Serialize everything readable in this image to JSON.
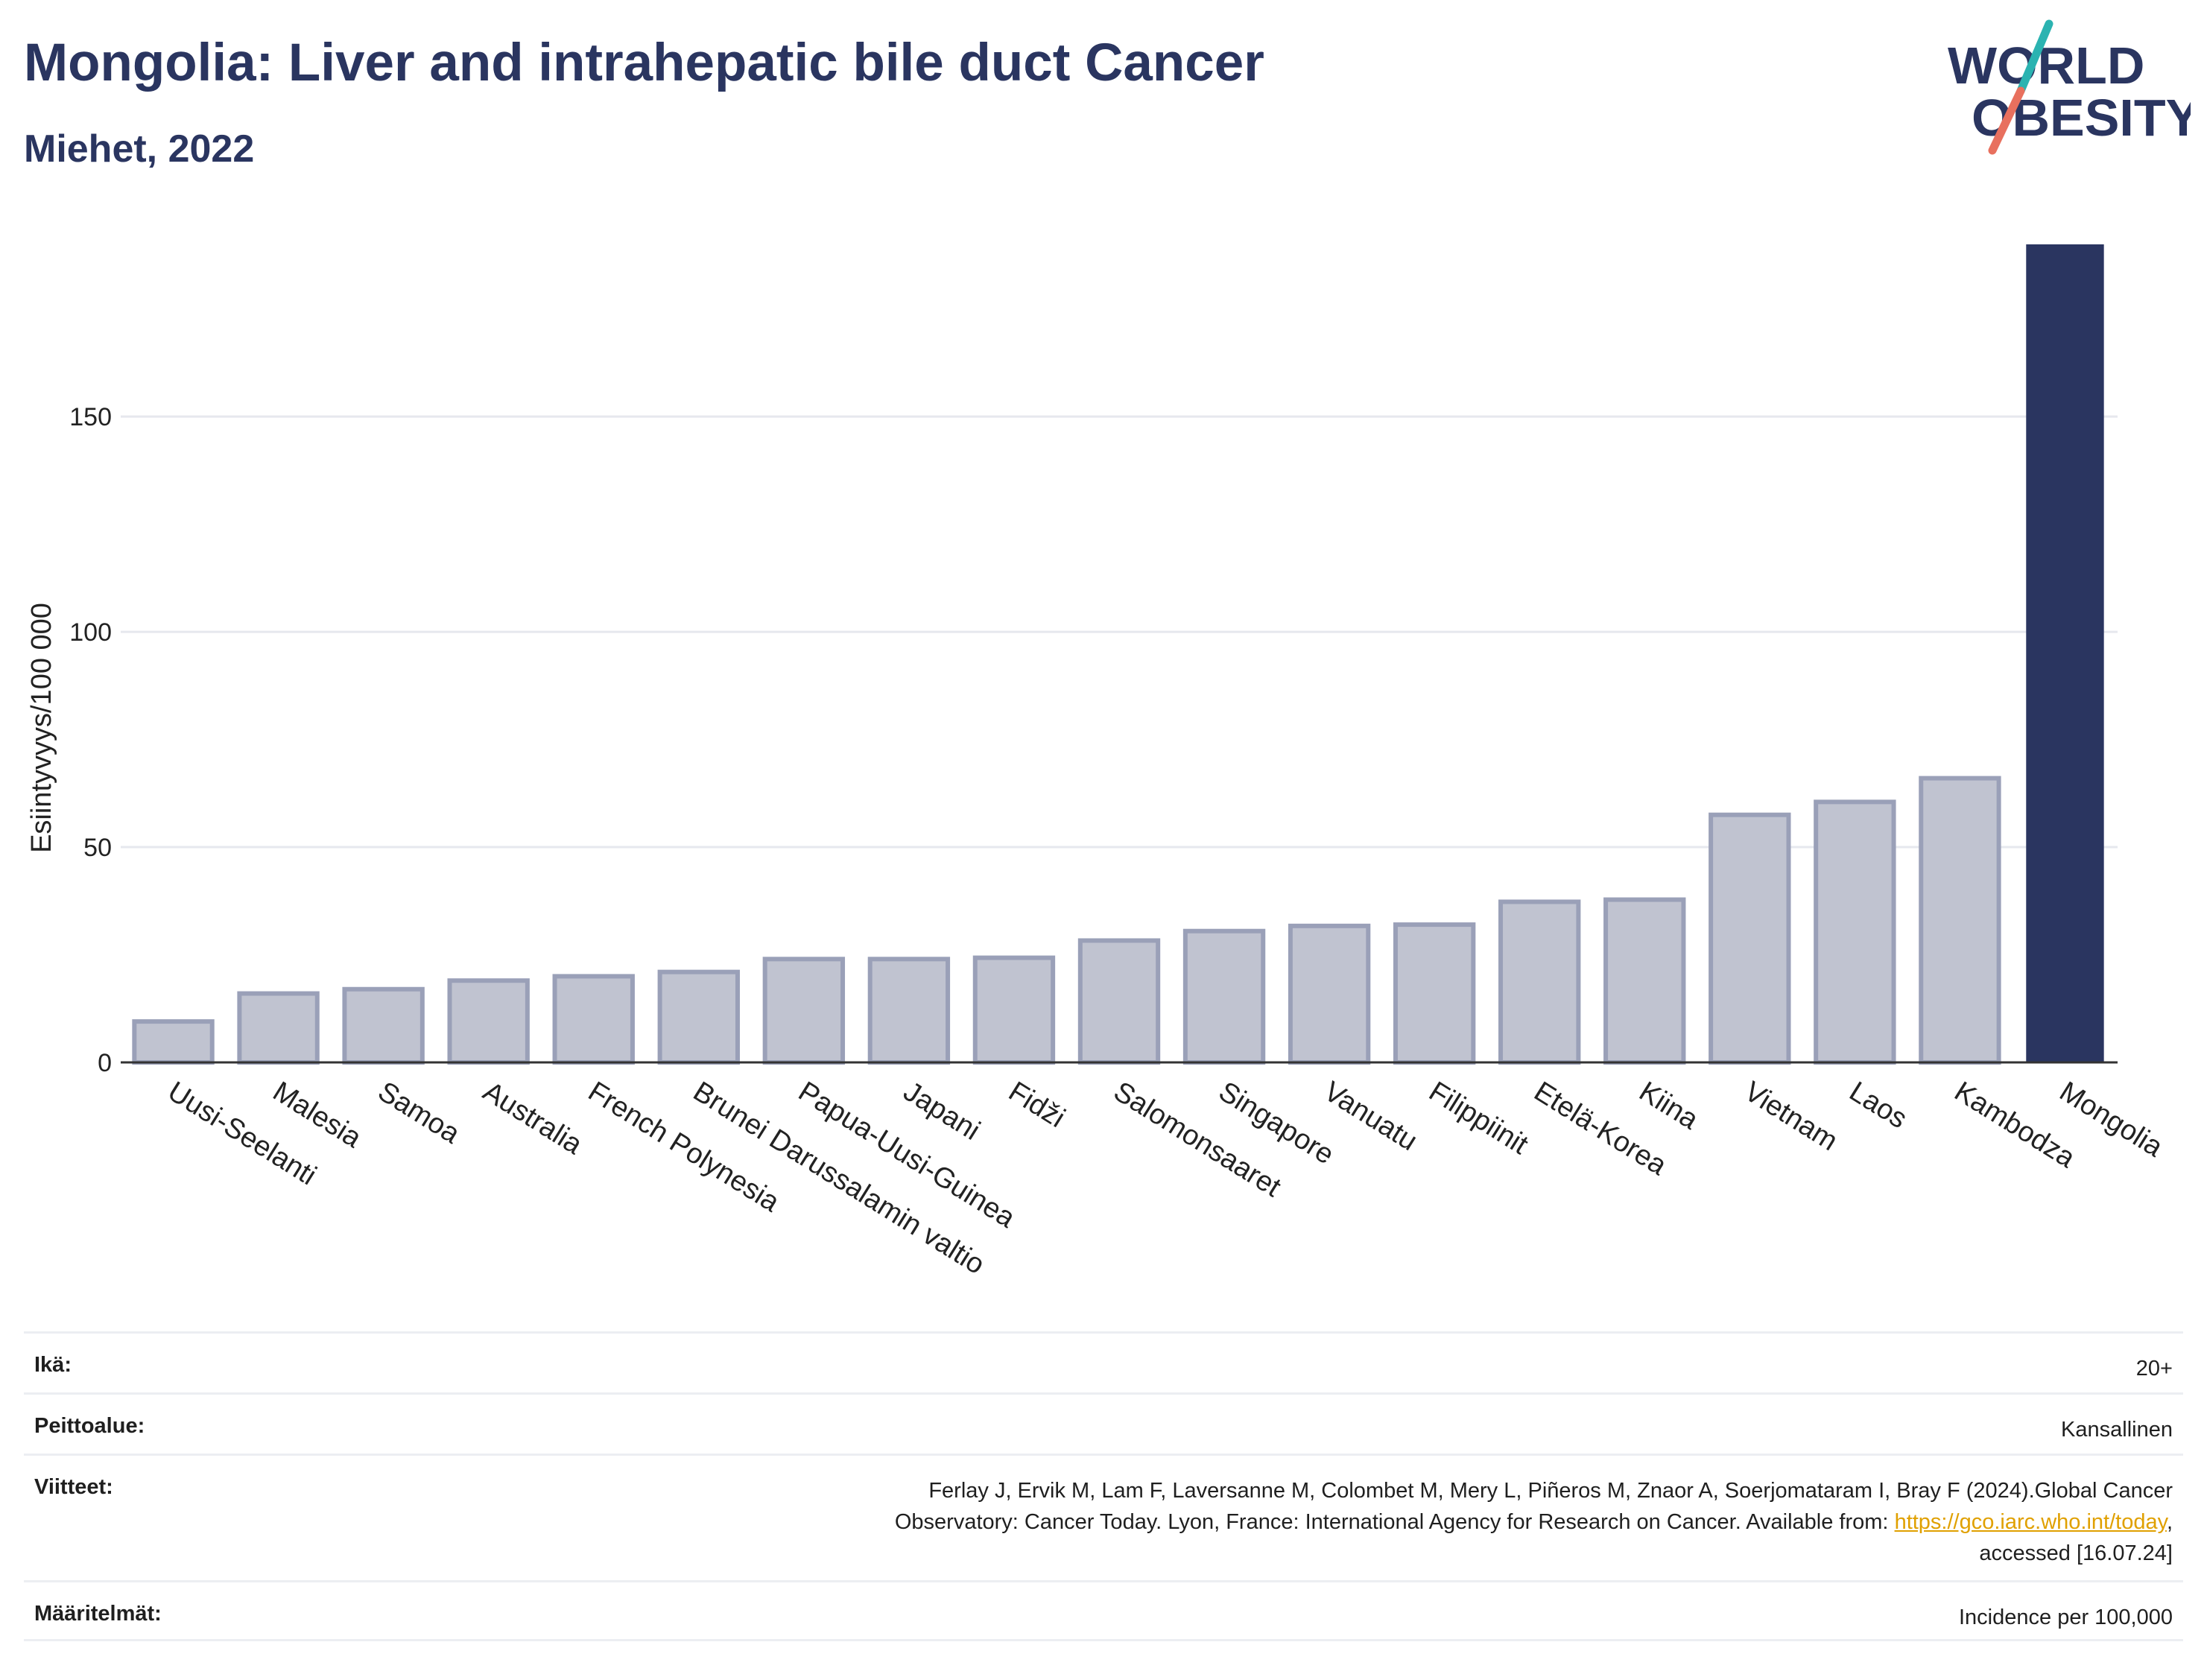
{
  "title": "Mongolia: Liver and intrahepatic bile duct Cancer",
  "subtitle": "Miehet, 2022",
  "logo": {
    "line1": "WORLD",
    "line2": "OBESITY",
    "colors": {
      "text": "#2a3560",
      "slash_top": "#2bb3b1",
      "slash_bottom": "#e8705e"
    }
  },
  "chart_data": {
    "type": "bar",
    "title": "Mongolia: Liver and intrahepatic bile duct Cancer",
    "subtitle": "Miehet, 2022",
    "xlabel": "",
    "ylabel": "Esiintyvyys/100 000",
    "ylim": [
      0,
      190
    ],
    "yticks": [
      0,
      50,
      100,
      150
    ],
    "grid": true,
    "categories": [
      "Uusi-Seelanti",
      "Malesia",
      "Samoa",
      "Australia",
      "French Polynesia",
      "Brunei Darussalamin valtio",
      "Papua-Uusi-Guinea",
      "Japani",
      "Fidži",
      "Salomonsaaret",
      "Singapore",
      "Vanuatu",
      "Filippiinit",
      "Etelä-Korea",
      "Kiina",
      "Vietnam",
      "Laos",
      "Kambodza",
      "Mongolia"
    ],
    "values": [
      9.5,
      16,
      17,
      19,
      20,
      21,
      24,
      24,
      24.3,
      28.3,
      30.5,
      31.7,
      32,
      37.3,
      37.8,
      57.5,
      60.5,
      66,
      190
    ],
    "highlight": "Mongolia",
    "colors": {
      "bar": "#c0c3d0",
      "bar_edge": "#9aa0b8",
      "highlight": "#2a3560",
      "grid": "#e6e8ee",
      "axis": "#333333"
    }
  },
  "footer": {
    "age_label": "Ikä:",
    "age_value": "20+",
    "coverage_label": "Peittoalue:",
    "coverage_value": "Kansallinen",
    "ref_label": "Viitteet:",
    "ref_line1": "Ferlay J, Ervik M, Lam F, Laversanne M, Colombet M, Mery L, Piñeros M, Znaor A, Soerjomataram I, Bray F (2024).Global Cancer",
    "ref_line2": "Observatory: Cancer Today. Lyon, France: International Agency for Research on Cancer. Available from: ",
    "ref_link": "https://gco.iarc.who.int/today",
    "ref_line2_end": ",",
    "ref_line3": "accessed [16.07.24]",
    "def_label": "Määritelmät:",
    "def_value": "Incidence per 100,000"
  }
}
